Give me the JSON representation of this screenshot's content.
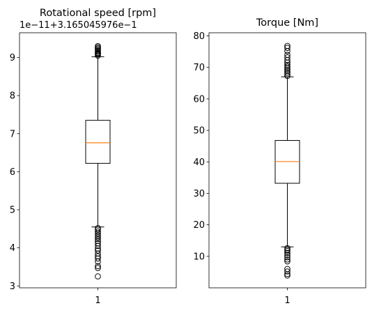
{
  "chart_data": [
    {
      "type": "box",
      "title": "Rotational speed [rpm]",
      "offset_label": "1e−11+3.165045976e−1",
      "categories": [
        "1"
      ],
      "ylim": [
        2.95,
        9.65
      ],
      "yticks": [
        3,
        4,
        5,
        6,
        7,
        8,
        9
      ],
      "ytick_labels": [
        "3",
        "4",
        "5",
        "6",
        "7",
        "8",
        "9"
      ],
      "box": {
        "whisker_low": 4.55,
        "q1": 6.22,
        "median": 6.76,
        "q3": 7.35,
        "whisker_high": 9.02
      },
      "fliers": [
        9.05,
        9.08,
        9.1,
        9.12,
        9.15,
        9.18,
        9.21,
        9.24,
        9.27,
        9.3,
        4.52,
        4.48,
        4.43,
        4.38,
        4.33,
        4.28,
        4.23,
        4.18,
        4.12,
        4.05,
        3.98,
        3.93,
        3.85,
        3.78,
        3.72,
        3.64,
        3.52,
        3.47,
        3.25
      ],
      "colors": {
        "box": "#000000",
        "median": "#ff7f0e"
      }
    },
    {
      "type": "box",
      "title": "Torque [Nm]",
      "offset_label": "",
      "categories": [
        "1"
      ],
      "ylim": [
        0,
        81
      ],
      "yticks": [
        10,
        20,
        30,
        40,
        50,
        60,
        70,
        80
      ],
      "ytick_labels": [
        "10",
        "20",
        "30",
        "40",
        "50",
        "60",
        "70",
        "80"
      ],
      "box": {
        "whisker_low": 13,
        "q1": 33.2,
        "median": 40.1,
        "q3": 46.8,
        "whisker_high": 67
      },
      "fliers": [
        67.3,
        67.8,
        68.3,
        68.8,
        69.3,
        69.8,
        70.3,
        70.8,
        71.5,
        72.3,
        73.2,
        74,
        75.2,
        76.2,
        76.8,
        12.6,
        12.1,
        11.7,
        11.1,
        10.4,
        9.7,
        9,
        8.4,
        6,
        5.2,
        4.4,
        3.9
      ],
      "colors": {
        "box": "#000000",
        "median": "#ff7f0e"
      }
    }
  ]
}
